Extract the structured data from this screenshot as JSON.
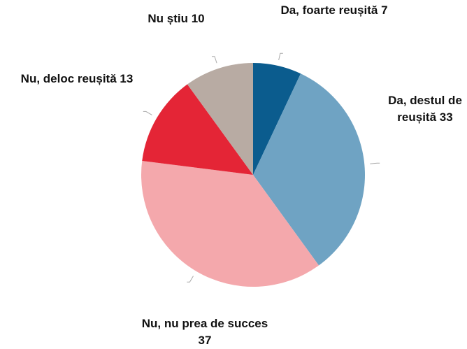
{
  "chart_data": {
    "type": "pie",
    "categories": [
      "Da, foarte reușită",
      "Da, destul de reușită",
      "Nu, nu prea de succes",
      "Nu, deloc reușită",
      "Nu știu"
    ],
    "values": [
      7,
      33,
      37,
      13,
      10
    ],
    "colors": [
      "#0b5c8e",
      "#6fa3c3",
      "#f4a8ac",
      "#e42536",
      "#b8aba3"
    ]
  }
}
